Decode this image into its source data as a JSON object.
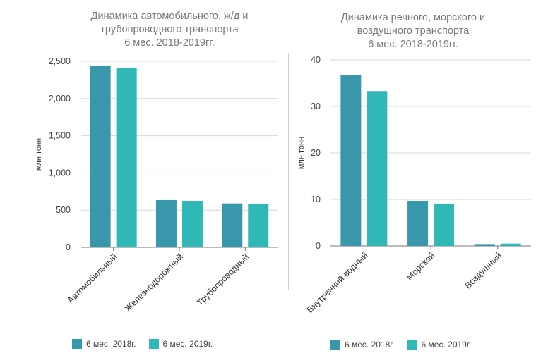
{
  "colors": {
    "series_2018": "#3897ab",
    "series_2019": "#30b8b6",
    "grid": "#d7d7d7",
    "axis": "#777777"
  },
  "chart_data": [
    {
      "type": "bar",
      "title": "Динамика автомобильного, ж/д и\nтрубопроводного транспорта\n6 мес. 2018-2019гг.",
      "ylabel": "млн тонн",
      "xlabel": "",
      "categories": [
        "Автомобильный",
        "Железнодорожный",
        "Трубопроводный"
      ],
      "series": [
        {
          "name": "6 мес. 2018г.",
          "values": [
            2440,
            635,
            590
          ]
        },
        {
          "name": "6 мес. 2019г.",
          "values": [
            2415,
            625,
            580
          ]
        }
      ],
      "ylim": [
        0,
        2500
      ],
      "yticks": [
        0,
        500,
        1000,
        1500,
        2000,
        2500
      ],
      "ytick_labels": [
        "0",
        "500",
        "1,000",
        "1,500",
        "2,000",
        "2,500"
      ],
      "grid": true,
      "legend": "bottom"
    },
    {
      "type": "bar",
      "title": "Динамика речного, морского и\nвоздушного транспорта\n6 мес. 2018-2019гг.",
      "ylabel": "млн тонн",
      "xlabel": "",
      "categories": [
        "Внутренний водный",
        "Морской",
        "Воздушный"
      ],
      "series": [
        {
          "name": "6 мес. 2018г.",
          "values": [
            36.7,
            9.7,
            0.4
          ]
        },
        {
          "name": "6 мес. 2019г.",
          "values": [
            33.3,
            9.1,
            0.5
          ]
        }
      ],
      "ylim": [
        0,
        40
      ],
      "yticks": [
        0,
        10,
        20,
        30,
        40
      ],
      "ytick_labels": [
        "0",
        "10",
        "20",
        "30",
        "40"
      ],
      "grid": true,
      "legend": "bottom"
    }
  ]
}
